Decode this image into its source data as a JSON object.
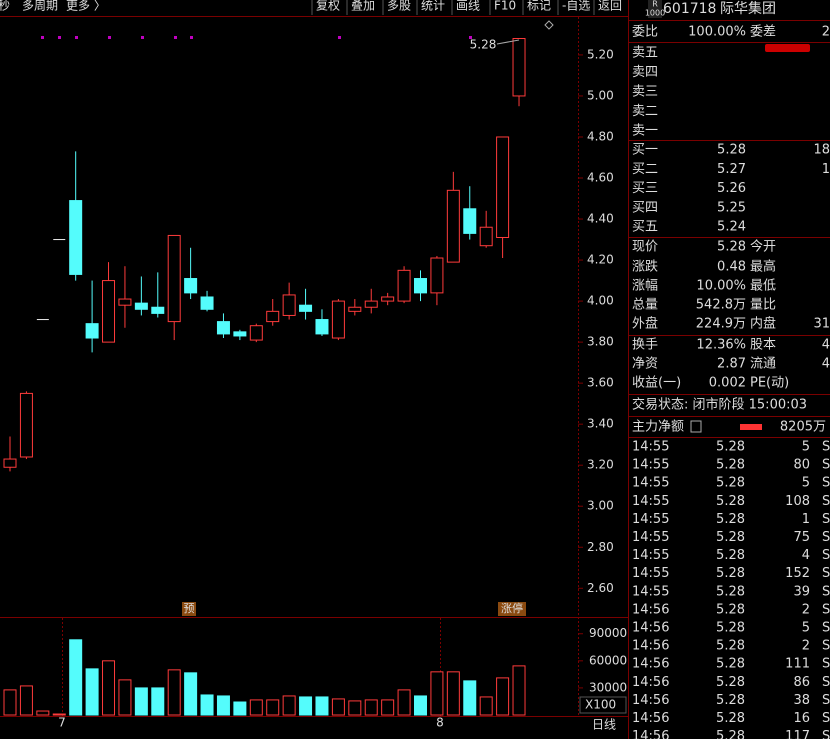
{
  "toolbar": {
    "left": [
      "秒",
      "多周期",
      "更多 〉"
    ],
    "right": [
      "复权",
      "叠加",
      "多股",
      "统计",
      "画线",
      "F10",
      "标记",
      "-自选",
      "返回"
    ]
  },
  "chart": {
    "ylim": [
      2.46,
      5.38
    ],
    "yticks": [
      {
        "value": 5.2,
        "label": "5.20"
      },
      {
        "value": 5.0,
        "label": "5.00"
      },
      {
        "value": 4.8,
        "label": "4.80"
      },
      {
        "value": 4.6,
        "label": "4.60"
      },
      {
        "value": 4.4,
        "label": "4.40"
      },
      {
        "value": 4.2,
        "label": "4.20"
      },
      {
        "value": 4.0,
        "label": "4.00"
      },
      {
        "value": 3.8,
        "label": "3.80"
      },
      {
        "value": 3.6,
        "label": "3.60"
      },
      {
        "value": 3.4,
        "label": "3.40"
      },
      {
        "value": 3.2,
        "label": "3.20"
      },
      {
        "value": 3.0,
        "label": "3.00"
      },
      {
        "value": 2.8,
        "label": "2.80"
      },
      {
        "value": 2.6,
        "label": "2.60"
      }
    ],
    "candles": [
      {
        "open": 3.19,
        "high": 3.34,
        "low": 3.17,
        "close": 3.23
      },
      {
        "open": 3.24,
        "high": 3.56,
        "low": 3.23,
        "close": 3.55
      },
      {
        "open": 3.91,
        "high": 3.91,
        "low": 3.91,
        "close": 3.91
      },
      {
        "open": 4.3,
        "high": 4.3,
        "low": 4.3,
        "close": 4.3
      },
      {
        "open": 4.49,
        "high": 4.73,
        "low": 4.1,
        "close": 4.13
      },
      {
        "open": 3.89,
        "high": 4.1,
        "low": 3.75,
        "close": 3.82
      },
      {
        "open": 3.8,
        "high": 4.19,
        "low": 3.8,
        "close": 4.1
      },
      {
        "open": 3.98,
        "high": 4.17,
        "low": 3.87,
        "close": 4.01
      },
      {
        "open": 3.99,
        "high": 4.12,
        "low": 3.93,
        "close": 3.96
      },
      {
        "open": 3.97,
        "high": 4.14,
        "low": 3.92,
        "close": 3.94
      },
      {
        "open": 3.9,
        "high": 4.32,
        "low": 3.81,
        "close": 4.32
      },
      {
        "open": 4.11,
        "high": 4.26,
        "low": 4.01,
        "close": 4.04
      },
      {
        "open": 4.02,
        "high": 4.05,
        "low": 3.95,
        "close": 3.96
      },
      {
        "open": 3.9,
        "high": 3.94,
        "low": 3.82,
        "close": 3.84
      },
      {
        "open": 3.85,
        "high": 3.86,
        "low": 3.81,
        "close": 3.83
      },
      {
        "open": 3.81,
        "high": 3.89,
        "low": 3.8,
        "close": 3.88
      },
      {
        "open": 3.9,
        "high": 4.01,
        "low": 3.88,
        "close": 3.95
      },
      {
        "open": 3.93,
        "high": 4.09,
        "low": 3.91,
        "close": 4.03
      },
      {
        "open": 3.98,
        "high": 4.06,
        "low": 3.91,
        "close": 3.95
      },
      {
        "open": 3.91,
        "high": 3.96,
        "low": 3.83,
        "close": 3.84
      },
      {
        "open": 3.82,
        "high": 4.01,
        "low": 3.81,
        "close": 4.0
      },
      {
        "open": 3.95,
        "high": 4.01,
        "low": 3.93,
        "close": 3.97
      },
      {
        "open": 3.97,
        "high": 4.06,
        "low": 3.94,
        "close": 4.0
      },
      {
        "open": 4.0,
        "high": 4.04,
        "low": 3.98,
        "close": 4.02
      },
      {
        "open": 4.0,
        "high": 4.17,
        "low": 3.99,
        "close": 4.15
      },
      {
        "open": 4.11,
        "high": 4.15,
        "low": 4.0,
        "close": 4.04
      },
      {
        "open": 4.04,
        "high": 4.22,
        "low": 3.98,
        "close": 4.21
      },
      {
        "open": 4.19,
        "high": 4.63,
        "low": 4.19,
        "close": 4.54
      },
      {
        "open": 4.45,
        "high": 4.56,
        "low": 4.3,
        "close": 4.33
      },
      {
        "open": 4.27,
        "high": 4.44,
        "low": 4.26,
        "close": 4.36
      },
      {
        "open": 4.31,
        "high": 4.8,
        "low": 4.21,
        "close": 4.8
      },
      {
        "open": 5.0,
        "high": 5.28,
        "low": 4.95,
        "close": 5.28
      }
    ],
    "annotation": "5.28",
    "tags": [
      "预",
      "涨停"
    ],
    "xlabels": [
      "7",
      "8"
    ]
  },
  "volume": {
    "ylim": [
      0,
      103000
    ],
    "yticks": [
      90000,
      60000,
      30000
    ],
    "unit": "X100",
    "values": [
      27800,
      32200,
      4400,
      1100,
      83300,
      51100,
      60000,
      38900,
      30000,
      30000,
      50000,
      46700,
      22200,
      21100,
      14400,
      16700,
      16700,
      21100,
      20000,
      20000,
      17800,
      15600,
      16700,
      16700,
      27800,
      21100,
      47800,
      47800,
      37800,
      20000,
      41100,
      54400
    ]
  },
  "period": "日线",
  "quote": {
    "badge": "R",
    "badge_sub": "1000",
    "code": "601718",
    "name": "际华集团",
    "ratio": [
      "委比",
      "100.00%",
      "委差",
      "2"
    ],
    "sell": [
      "卖五",
      "卖四",
      "卖三",
      "卖二",
      "卖一"
    ],
    "buy": [
      [
        "买一",
        "5.28",
        "18"
      ],
      [
        "买二",
        "5.27",
        "1"
      ],
      [
        "买三",
        "5.26"
      ],
      [
        "买四",
        "5.25"
      ],
      [
        "买五",
        "5.24"
      ]
    ],
    "stats": [
      [
        "现价",
        "5.28",
        "今开"
      ],
      [
        "涨跌",
        "0.48",
        "最高"
      ],
      [
        "涨幅",
        "10.00%",
        "最低"
      ],
      [
        "总量",
        "542.8万",
        "量比"
      ],
      [
        "外盘",
        "224.9万",
        "内盘",
        "31"
      ],
      [
        "换手",
        "12.36%",
        "股本",
        "4"
      ],
      [
        "净资",
        "2.87",
        "流通",
        "4"
      ],
      [
        "收益(一)",
        "0.002",
        "PE(动)"
      ]
    ],
    "status": "交易状态: 闭市阶段 15:00:03",
    "flow": [
      "主力净额",
      "8205万"
    ],
    "trades": [
      [
        "14:55",
        5.28,
        5,
        "S"
      ],
      [
        "14:55",
        5.28,
        80,
        "S"
      ],
      [
        "14:55",
        5.28,
        5,
        "S"
      ],
      [
        "14:55",
        5.28,
        108,
        "S"
      ],
      [
        "14:55",
        5.28,
        1,
        "S"
      ],
      [
        "14:55",
        5.28,
        75,
        "S"
      ],
      [
        "14:55",
        5.28,
        4,
        "S"
      ],
      [
        "14:55",
        5.28,
        152,
        "S"
      ],
      [
        "14:55",
        5.28,
        39,
        "S"
      ],
      [
        "14:56",
        5.28,
        2,
        "S"
      ],
      [
        "14:56",
        5.28,
        5,
        "S"
      ],
      [
        "14:56",
        5.28,
        2,
        "S"
      ],
      [
        "14:56",
        5.28,
        111,
        "S"
      ],
      [
        "14:56",
        5.28,
        86,
        "S"
      ],
      [
        "14:56",
        5.28,
        38,
        "S"
      ],
      [
        "14:56",
        5.28,
        16,
        "S"
      ],
      [
        "14:56",
        5.28,
        117,
        "S"
      ]
    ]
  }
}
